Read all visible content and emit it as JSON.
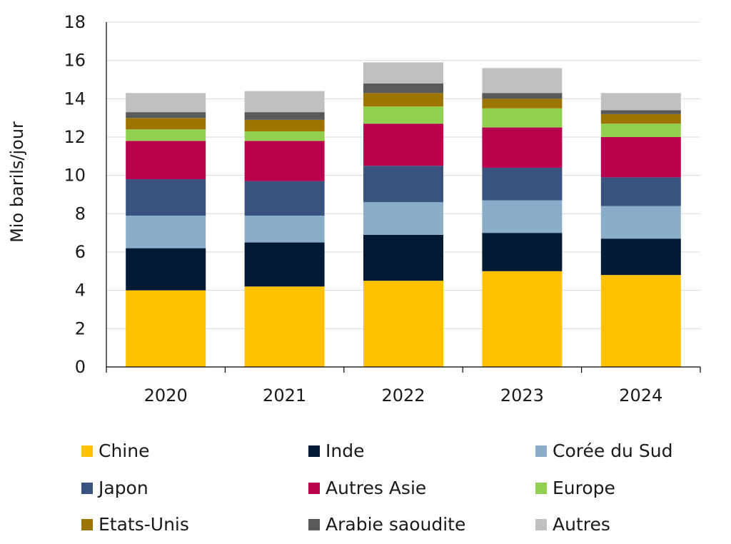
{
  "chart_data": {
    "type": "bar",
    "stacked": true,
    "title": "",
    "xlabel": "",
    "ylabel": "Mio barils/jour",
    "ylim": [
      0,
      18
    ],
    "yticks": [
      "0",
      "2",
      "4",
      "6",
      "8",
      "10",
      "12",
      "14",
      "16",
      "18"
    ],
    "categories": [
      "2020",
      "2021",
      "2022",
      "2023",
      "2024"
    ],
    "grid": true,
    "legend_position": "bottom",
    "series": [
      {
        "name": "Chine",
        "color": "#fcc200",
        "values": [
          4.0,
          4.2,
          4.5,
          5.0,
          4.8
        ]
      },
      {
        "name": "Inde",
        "color": "#031a35",
        "values": [
          2.2,
          2.3,
          2.4,
          2.0,
          1.9
        ]
      },
      {
        "name": "Corée du Sud",
        "color": "#8aaec9",
        "values": [
          1.7,
          1.4,
          1.7,
          1.7,
          1.7
        ]
      },
      {
        "name": "Japon",
        "color": "#3a5280",
        "values": [
          1.9,
          1.8,
          1.9,
          1.7,
          1.5
        ]
      },
      {
        "name": "Autres Asie",
        "color": "#b8004f",
        "values": [
          2.0,
          2.1,
          2.2,
          2.1,
          2.1
        ]
      },
      {
        "name": "Europe",
        "color": "#92d050",
        "values": [
          0.6,
          0.5,
          0.9,
          1.0,
          0.7
        ]
      },
      {
        "name": "Etats-Unis",
        "color": "#9c7400",
        "values": [
          0.6,
          0.6,
          0.7,
          0.5,
          0.5
        ]
      },
      {
        "name": "Arabie saoudite",
        "color": "#595959",
        "values": [
          0.3,
          0.4,
          0.5,
          0.3,
          0.2
        ]
      },
      {
        "name": "Autres",
        "color": "#c0c0c0",
        "values": [
          1.0,
          1.1,
          1.1,
          1.3,
          0.9
        ]
      }
    ]
  }
}
